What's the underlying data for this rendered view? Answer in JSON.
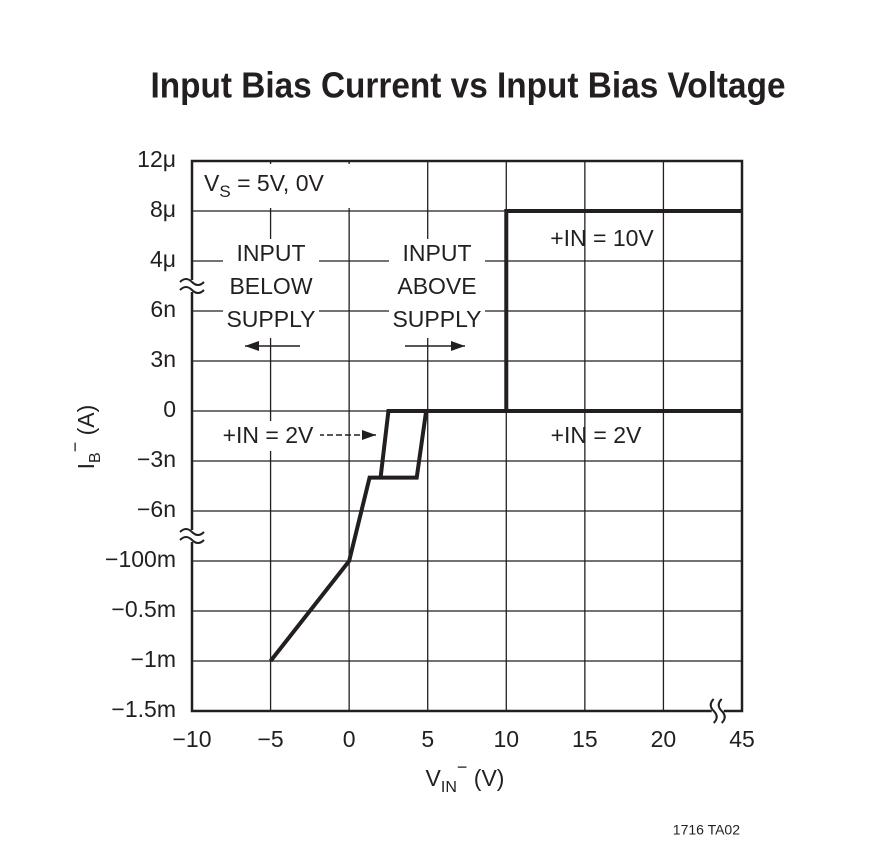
{
  "chart_data": {
    "type": "line",
    "title": "Input Bias Current vs Input Bias Voltage",
    "xlabel": {
      "main": "V",
      "sub": "IN",
      "sup": "−",
      "unit": " (V)"
    },
    "ylabel": {
      "main": "I",
      "sub": "B",
      "sup": "−",
      "unit": " (A)"
    },
    "xticks": [
      {
        "value": -10,
        "label": "−10"
      },
      {
        "value": -5,
        "label": "−5"
      },
      0,
      5,
      10,
      15,
      20,
      45
    ],
    "yticks": [
      {
        "value": 1.2e-05,
        "label": "12μ"
      },
      {
        "value": 8e-06,
        "label": "8μ"
      },
      {
        "value": 4e-06,
        "label": "4μ"
      },
      {
        "value": 6e-09,
        "label": "6n"
      },
      {
        "value": 3e-09,
        "label": "3n"
      },
      0,
      {
        "value": -3e-09,
        "label": "−3n"
      },
      {
        "value": -6e-09,
        "label": "−6n"
      },
      {
        "value": -0.1,
        "label": "−100m"
      },
      {
        "value": -0.0005,
        "label": "−0.5m"
      },
      {
        "value": -0.001,
        "label": "−1m"
      },
      {
        "value": -0.0015,
        "label": "−1.5m"
      }
    ],
    "grid": true,
    "series": [
      {
        "name": "+IN = 2V",
        "color": "#231f20",
        "x": [
          -5,
          0,
          1.3,
          4.3,
          4.9,
          45,
          null,
          2,
          2.5,
          4.9
        ],
        "values": [
          -0.001,
          -0.1,
          -4e-09,
          -4e-09,
          0,
          0,
          null,
          -4e-09,
          0,
          0
        ]
      },
      {
        "name": "+IN = 10V",
        "color": "#231f20",
        "x": [
          10,
          10,
          45
        ],
        "values": [
          0,
          8e-06,
          8e-06
        ]
      }
    ],
    "annotations": {
      "vs": {
        "main": "V",
        "sub": "S",
        "rest": " = 5V, 0V"
      },
      "below": [
        "INPUT",
        "BELOW",
        "SUPPLY"
      ],
      "above": [
        "INPUT",
        "ABOVE",
        "SUPPLY"
      ],
      "footnote": "1716 TA02"
    }
  }
}
